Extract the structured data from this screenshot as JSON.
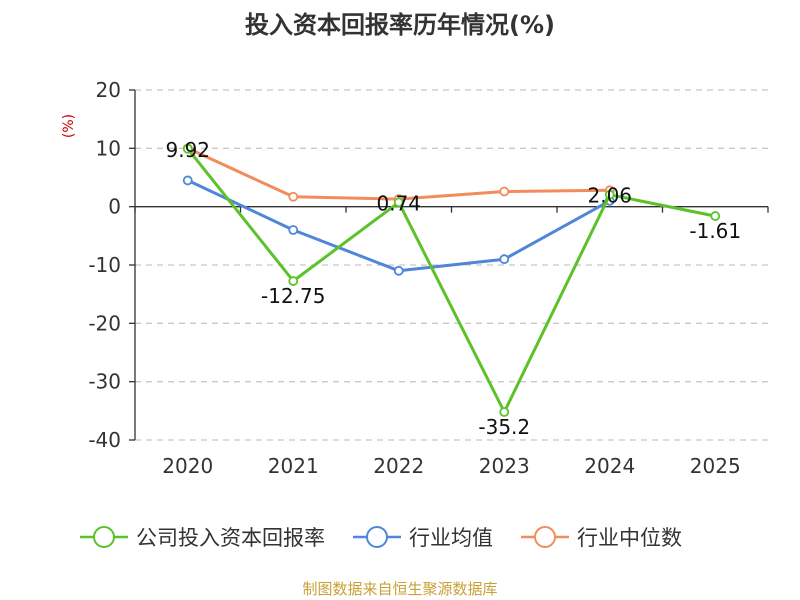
{
  "chart_data": {
    "type": "line",
    "title": "投入资本回报率历年情况(%)",
    "ylabel": "(%)",
    "xlabel": "",
    "categories": [
      "2020",
      "2021",
      "2022",
      "2023",
      "2024",
      "2025"
    ],
    "ylim": [
      -40,
      20
    ],
    "yticks": [
      "20",
      "10",
      "0",
      "-10",
      "-20",
      "-30",
      "-40"
    ],
    "grid": true,
    "legend_position": "bottom",
    "series": [
      {
        "name": "公司投入资本回报率",
        "color": "#5cc22a",
        "values": [
          9.92,
          -12.75,
          0.74,
          -35.2,
          2.06,
          -1.61
        ],
        "labels": [
          "9.92",
          "-12.75",
          "0.74",
          "-35.2",
          "2.06",
          "-1.61"
        ]
      },
      {
        "name": "行业均值",
        "color": "#4f86d9",
        "values": [
          4.5,
          -4.0,
          -11.0,
          -9.0,
          1.0,
          null
        ]
      },
      {
        "name": "行业中位数",
        "color": "#f28c5a",
        "values": [
          10.0,
          1.7,
          1.3,
          2.6,
          2.8,
          null
        ]
      }
    ],
    "source": "制图数据来自恒生聚源数据库"
  }
}
